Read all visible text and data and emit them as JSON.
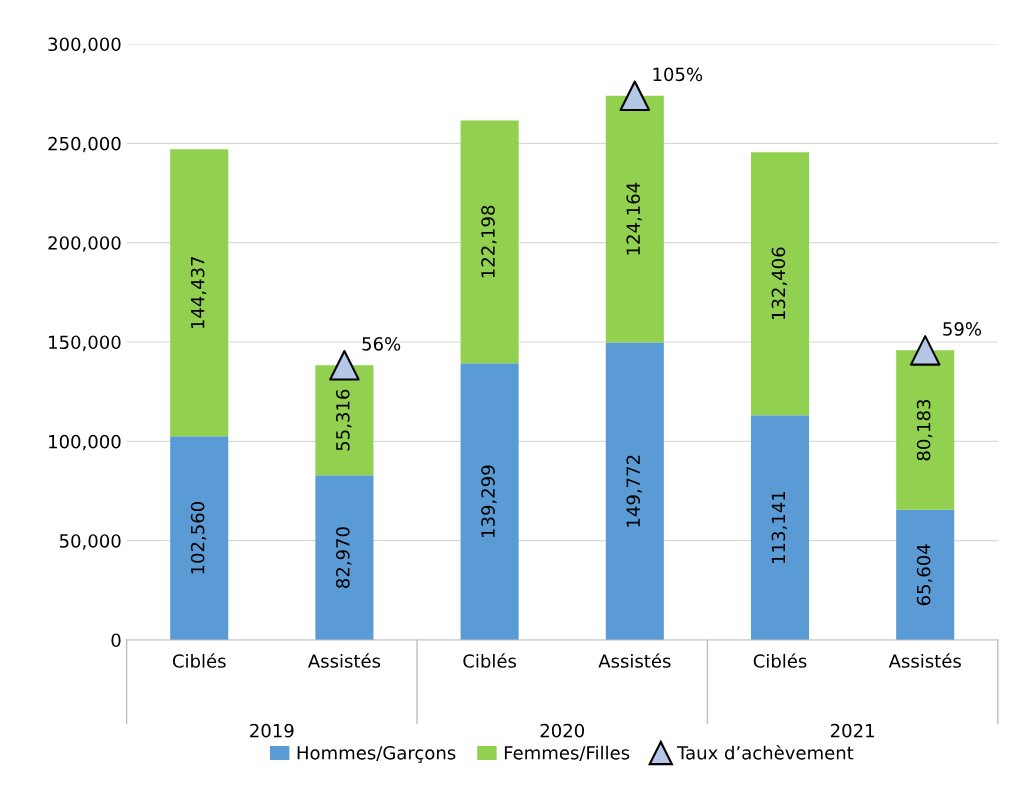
{
  "chart_data": {
    "type": "bar",
    "stacked": true,
    "categories": [
      "Ciblés",
      "Assistés",
      "Ciblés",
      "Assistés",
      "Ciblés",
      "Assistés"
    ],
    "series": [
      {
        "name": "Hommes/Garçons",
        "color": "#5b9bd5",
        "values": [
          102560,
          82970,
          139299,
          149772,
          113141,
          65604
        ],
        "value_labels": [
          "102,560",
          "82,970",
          "139,299",
          "149,772",
          "113,141",
          "65,604"
        ]
      },
      {
        "name": "Femmes/Filles",
        "color": "#92d050",
        "values": [
          144437,
          55316,
          122198,
          124164,
          132406,
          80183
        ],
        "value_labels": [
          "144,437",
          "55,316",
          "122,198",
          "124,164",
          "132,406",
          "80,183"
        ]
      },
      {
        "name": "Taux d’achèvement",
        "type": "scatter",
        "color": "#b4c7e7",
        "marker": "triangle",
        "values": [
          null,
          138286,
          null,
          273936,
          null,
          145787
        ]
      }
    ],
    "annotations": [
      "2019",
      "2020",
      "2021",
      "56%",
      "105%",
      "59%"
    ],
    "ylim": [
      0,
      300000
    ],
    "yticks": [
      {
        "value": 0,
        "label": "0"
      },
      {
        "value": 50000,
        "label": "50,000"
      },
      {
        "value": 100000,
        "label": "100,000"
      },
      {
        "value": 150000,
        "label": "150,000"
      },
      {
        "value": 200000,
        "label": "200,000"
      },
      {
        "value": 250000,
        "label": "250,000"
      },
      {
        "value": 300000,
        "label": "300,000"
      }
    ],
    "grid": "y",
    "legend": "bottom"
  }
}
